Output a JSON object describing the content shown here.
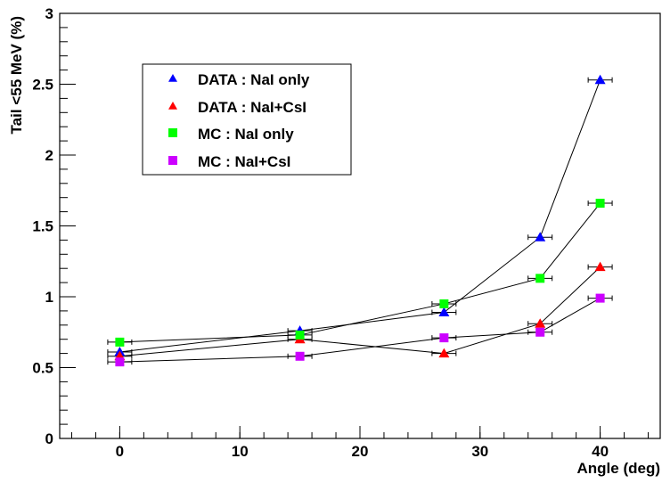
{
  "chart_data": {
    "type": "scatter",
    "xlabel": "Angle (deg)",
    "ylabel": "Tail <55 MeV (%)",
    "xlim": [
      -5,
      45
    ],
    "ylim": [
      0,
      3
    ],
    "xticks": [
      0,
      10,
      20,
      30,
      40
    ],
    "yticks": [
      0,
      0.5,
      1,
      1.5,
      2,
      2.5,
      3
    ],
    "ytick_labels": [
      "0",
      "0.5",
      "1",
      "1.5",
      "2",
      "2.5",
      "3"
    ],
    "x_error": 1,
    "grid": false,
    "legend_position": "top-left",
    "series": [
      {
        "name": "DATA : NaI only",
        "marker": "triangle",
        "color": "#0000ff",
        "x": [
          0,
          15,
          27,
          35,
          40
        ],
        "y": [
          0.61,
          0.76,
          0.89,
          1.42,
          2.53
        ]
      },
      {
        "name": "DATA : NaI+CsI",
        "marker": "triangle",
        "color": "#ff0000",
        "x": [
          0,
          15,
          27,
          35,
          40
        ],
        "y": [
          0.58,
          0.7,
          0.6,
          0.81,
          1.21
        ]
      },
      {
        "name": "MC : NaI only",
        "marker": "square",
        "color": "#00ff00",
        "x": [
          0,
          15,
          27,
          35,
          40
        ],
        "y": [
          0.68,
          0.73,
          0.95,
          1.13,
          1.66
        ]
      },
      {
        "name": "MC : NaI+CsI",
        "marker": "square",
        "color": "#cc00ff",
        "x": [
          0,
          15,
          27,
          35,
          40
        ],
        "y": [
          0.54,
          0.58,
          0.71,
          0.75,
          0.99
        ]
      }
    ]
  }
}
